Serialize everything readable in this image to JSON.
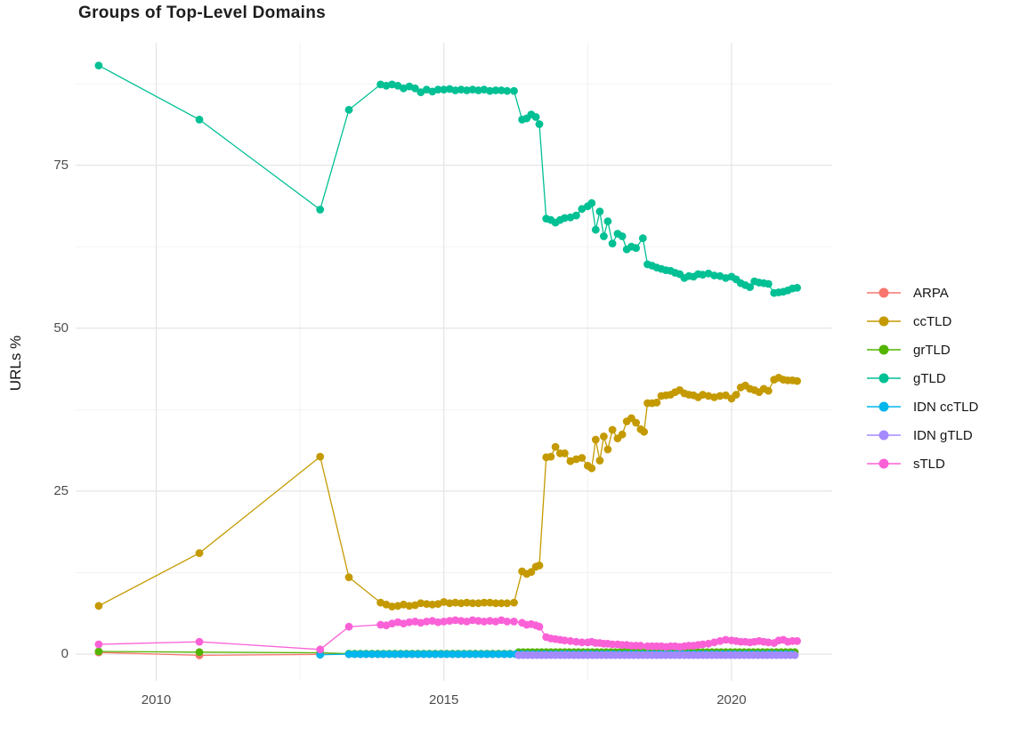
{
  "chart_data": {
    "type": "line",
    "title": "Groups of Top-Level Domains",
    "xlabel": "",
    "ylabel": "URLs %",
    "grid": true,
    "legend_position": "right",
    "xlim": [
      2008.6,
      2021.75
    ],
    "ylim": [
      -4.1,
      93.8
    ],
    "x_ticks": [
      2010,
      2015,
      2020
    ],
    "y_ticks": [
      0,
      25,
      50,
      75
    ],
    "x_minor_gridlines": [
      2012.5,
      2017.5
    ],
    "y_minor_gridlines": [
      12.5,
      37.5,
      62.5,
      87.5
    ],
    "series": [
      {
        "name": "ARPA",
        "color": "#F8766D",
        "points": [
          [
            2009.0,
            0.25
          ],
          [
            2010.75,
            -0.2
          ],
          [
            2012.85,
            -0.05
          ]
        ],
        "flat_segments": [
          {
            "from": 2013.35,
            "to": 2021.14,
            "step": 0.1,
            "value": 0.0
          }
        ]
      },
      {
        "name": "ccTLD",
        "color": "#C49A00",
        "points": [
          [
            2009.0,
            7.4
          ],
          [
            2010.75,
            15.5
          ],
          [
            2012.85,
            30.3
          ],
          [
            2013.35,
            11.8
          ],
          [
            2013.9,
            7.9
          ],
          [
            2014.0,
            7.6
          ],
          [
            2014.1,
            7.3
          ],
          [
            2014.2,
            7.4
          ],
          [
            2014.3,
            7.6
          ],
          [
            2014.4,
            7.4
          ],
          [
            2014.5,
            7.5
          ],
          [
            2014.6,
            7.8
          ],
          [
            2014.7,
            7.7
          ],
          [
            2014.8,
            7.6
          ],
          [
            2014.9,
            7.7
          ],
          [
            2015.0,
            8.0
          ],
          [
            2015.1,
            7.8
          ],
          [
            2015.2,
            7.9
          ],
          [
            2015.3,
            7.8
          ],
          [
            2015.4,
            7.9
          ],
          [
            2015.5,
            7.8
          ],
          [
            2015.6,
            7.8
          ],
          [
            2015.7,
            7.9
          ],
          [
            2015.8,
            7.9
          ],
          [
            2015.9,
            7.8
          ],
          [
            2016.0,
            7.8
          ],
          [
            2016.1,
            7.8
          ],
          [
            2016.22,
            7.9
          ],
          [
            2016.36,
            12.7
          ],
          [
            2016.44,
            12.3
          ],
          [
            2016.52,
            12.6
          ],
          [
            2016.6,
            13.4
          ],
          [
            2016.66,
            13.6
          ],
          [
            2016.78,
            30.2
          ],
          [
            2016.86,
            30.3
          ],
          [
            2016.94,
            31.8
          ],
          [
            2017.02,
            30.8
          ],
          [
            2017.1,
            30.8
          ],
          [
            2017.2,
            29.6
          ],
          [
            2017.3,
            29.9
          ],
          [
            2017.4,
            30.1
          ],
          [
            2017.5,
            28.9
          ],
          [
            2017.57,
            28.5
          ],
          [
            2017.64,
            32.9
          ],
          [
            2017.71,
            29.7
          ],
          [
            2017.78,
            33.4
          ],
          [
            2017.85,
            31.4
          ],
          [
            2017.93,
            34.4
          ],
          [
            2018.02,
            33.1
          ],
          [
            2018.1,
            33.7
          ],
          [
            2018.18,
            35.7
          ],
          [
            2018.26,
            36.2
          ],
          [
            2018.34,
            35.5
          ],
          [
            2018.42,
            34.5
          ],
          [
            2018.48,
            34.1
          ],
          [
            2018.54,
            38.5
          ],
          [
            2018.62,
            38.5
          ],
          [
            2018.7,
            38.6
          ],
          [
            2018.78,
            39.6
          ],
          [
            2018.86,
            39.7
          ],
          [
            2018.94,
            39.8
          ],
          [
            2019.02,
            40.2
          ],
          [
            2019.1,
            40.5
          ],
          [
            2019.18,
            40.0
          ],
          [
            2019.26,
            39.8
          ],
          [
            2019.34,
            39.7
          ],
          [
            2019.42,
            39.4
          ],
          [
            2019.5,
            39.8
          ],
          [
            2019.6,
            39.6
          ],
          [
            2019.7,
            39.4
          ],
          [
            2019.8,
            39.6
          ],
          [
            2019.9,
            39.7
          ],
          [
            2020.0,
            39.2
          ],
          [
            2020.08,
            39.8
          ],
          [
            2020.16,
            40.9
          ],
          [
            2020.24,
            41.2
          ],
          [
            2020.32,
            40.7
          ],
          [
            2020.4,
            40.5
          ],
          [
            2020.48,
            40.2
          ],
          [
            2020.56,
            40.7
          ],
          [
            2020.64,
            40.4
          ],
          [
            2020.74,
            42.1
          ],
          [
            2020.82,
            42.4
          ],
          [
            2020.9,
            42.1
          ],
          [
            2020.98,
            42.0
          ],
          [
            2021.06,
            42.0
          ],
          [
            2021.14,
            41.9
          ]
        ]
      },
      {
        "name": "grTLD",
        "color": "#53B400",
        "points": [
          [
            2009.0,
            0.4
          ],
          [
            2010.75,
            0.3
          ],
          [
            2012.85,
            0.2
          ]
        ],
        "flat_segments": [
          {
            "from": 2013.35,
            "to": 2016.22,
            "step": 0.1,
            "value": 0.06
          },
          {
            "from": 2016.3,
            "to": 2021.14,
            "step": 0.08,
            "value": 0.3
          }
        ]
      },
      {
        "name": "gTLD",
        "color": "#00C094",
        "points": [
          [
            2009.0,
            90.3
          ],
          [
            2010.75,
            82.0
          ],
          [
            2012.85,
            68.2
          ],
          [
            2013.35,
            83.5
          ],
          [
            2013.9,
            87.4
          ],
          [
            2014.0,
            87.2
          ],
          [
            2014.1,
            87.4
          ],
          [
            2014.2,
            87.2
          ],
          [
            2014.3,
            86.8
          ],
          [
            2014.4,
            87.1
          ],
          [
            2014.5,
            86.8
          ],
          [
            2014.6,
            86.2
          ],
          [
            2014.7,
            86.6
          ],
          [
            2014.8,
            86.3
          ],
          [
            2014.9,
            86.6
          ],
          [
            2015.0,
            86.6
          ],
          [
            2015.1,
            86.7
          ],
          [
            2015.2,
            86.5
          ],
          [
            2015.3,
            86.6
          ],
          [
            2015.4,
            86.5
          ],
          [
            2015.5,
            86.6
          ],
          [
            2015.6,
            86.5
          ],
          [
            2015.7,
            86.6
          ],
          [
            2015.8,
            86.4
          ],
          [
            2015.9,
            86.5
          ],
          [
            2016.0,
            86.5
          ],
          [
            2016.1,
            86.4
          ],
          [
            2016.22,
            86.4
          ],
          [
            2016.36,
            82.0
          ],
          [
            2016.44,
            82.2
          ],
          [
            2016.52,
            82.8
          ],
          [
            2016.6,
            82.4
          ],
          [
            2016.66,
            81.3
          ],
          [
            2016.78,
            66.8
          ],
          [
            2016.86,
            66.6
          ],
          [
            2016.94,
            66.2
          ],
          [
            2017.02,
            66.6
          ],
          [
            2017.1,
            66.9
          ],
          [
            2017.2,
            67.0
          ],
          [
            2017.3,
            67.3
          ],
          [
            2017.4,
            68.3
          ],
          [
            2017.5,
            68.7
          ],
          [
            2017.57,
            69.2
          ],
          [
            2017.64,
            65.1
          ],
          [
            2017.71,
            67.9
          ],
          [
            2017.78,
            64.1
          ],
          [
            2017.85,
            66.4
          ],
          [
            2017.93,
            63.0
          ],
          [
            2018.02,
            64.5
          ],
          [
            2018.1,
            64.1
          ],
          [
            2018.18,
            62.1
          ],
          [
            2018.26,
            62.5
          ],
          [
            2018.34,
            62.3
          ],
          [
            2018.46,
            63.8
          ],
          [
            2018.54,
            59.8
          ],
          [
            2018.62,
            59.6
          ],
          [
            2018.7,
            59.3
          ],
          [
            2018.78,
            59.1
          ],
          [
            2018.86,
            58.9
          ],
          [
            2018.94,
            58.8
          ],
          [
            2019.02,
            58.5
          ],
          [
            2019.1,
            58.3
          ],
          [
            2019.18,
            57.7
          ],
          [
            2019.26,
            58.0
          ],
          [
            2019.34,
            57.9
          ],
          [
            2019.42,
            58.3
          ],
          [
            2019.5,
            58.2
          ],
          [
            2019.6,
            58.4
          ],
          [
            2019.7,
            58.1
          ],
          [
            2019.8,
            58.0
          ],
          [
            2019.9,
            57.7
          ],
          [
            2020.0,
            57.9
          ],
          [
            2020.08,
            57.5
          ],
          [
            2020.16,
            56.9
          ],
          [
            2020.24,
            56.6
          ],
          [
            2020.32,
            56.3
          ],
          [
            2020.4,
            57.2
          ],
          [
            2020.48,
            57.0
          ],
          [
            2020.56,
            56.9
          ],
          [
            2020.64,
            56.8
          ],
          [
            2020.74,
            55.4
          ],
          [
            2020.82,
            55.5
          ],
          [
            2020.9,
            55.6
          ],
          [
            2020.98,
            55.8
          ],
          [
            2021.06,
            56.1
          ],
          [
            2021.14,
            56.2
          ]
        ]
      },
      {
        "name": "IDN ccTLD",
        "color": "#00B6EB",
        "points": [
          [
            2012.85,
            -0.1
          ]
        ],
        "flat_segments": [
          {
            "from": 2013.35,
            "to": 2021.14,
            "step": 0.1,
            "value": 0.0
          }
        ]
      },
      {
        "name": "IDN gTLD",
        "color": "#A58AFF",
        "points": [],
        "flat_segments": [
          {
            "from": 2016.3,
            "to": 2021.14,
            "step": 0.08,
            "value": -0.15
          }
        ]
      },
      {
        "name": "sTLD",
        "color": "#FB61D7",
        "points": [
          [
            2009.0,
            1.5
          ],
          [
            2010.75,
            1.9
          ],
          [
            2012.85,
            0.7
          ],
          [
            2013.35,
            4.2
          ],
          [
            2013.9,
            4.5
          ],
          [
            2014.0,
            4.4
          ],
          [
            2014.1,
            4.7
          ],
          [
            2014.2,
            4.9
          ],
          [
            2014.3,
            4.7
          ],
          [
            2014.4,
            4.9
          ],
          [
            2014.5,
            5.0
          ],
          [
            2014.6,
            4.8
          ],
          [
            2014.7,
            5.0
          ],
          [
            2014.8,
            5.1
          ],
          [
            2014.9,
            4.9
          ],
          [
            2015.0,
            5.0
          ],
          [
            2015.1,
            5.1
          ],
          [
            2015.2,
            5.2
          ],
          [
            2015.3,
            5.1
          ],
          [
            2015.4,
            5.0
          ],
          [
            2015.5,
            5.2
          ],
          [
            2015.6,
            5.1
          ],
          [
            2015.7,
            5.0
          ],
          [
            2015.8,
            5.1
          ],
          [
            2015.9,
            5.0
          ],
          [
            2016.0,
            5.2
          ],
          [
            2016.1,
            5.0
          ],
          [
            2016.22,
            5.0
          ],
          [
            2016.36,
            4.8
          ],
          [
            2016.44,
            4.5
          ],
          [
            2016.52,
            4.6
          ],
          [
            2016.6,
            4.4
          ],
          [
            2016.66,
            4.2
          ],
          [
            2016.78,
            2.6
          ],
          [
            2016.86,
            2.4
          ],
          [
            2016.94,
            2.3
          ],
          [
            2017.02,
            2.2
          ],
          [
            2017.1,
            2.1
          ],
          [
            2017.2,
            2.0
          ],
          [
            2017.3,
            1.9
          ],
          [
            2017.4,
            1.8
          ],
          [
            2017.5,
            1.8
          ],
          [
            2017.57,
            1.9
          ],
          [
            2017.64,
            1.7
          ],
          [
            2017.71,
            1.7
          ],
          [
            2017.78,
            1.6
          ],
          [
            2017.85,
            1.6
          ],
          [
            2017.93,
            1.5
          ],
          [
            2018.02,
            1.5
          ],
          [
            2018.1,
            1.4
          ],
          [
            2018.18,
            1.4
          ],
          [
            2018.26,
            1.3
          ],
          [
            2018.34,
            1.3
          ],
          [
            2018.42,
            1.3
          ],
          [
            2018.54,
            1.2
          ],
          [
            2018.62,
            1.2
          ],
          [
            2018.7,
            1.2
          ],
          [
            2018.78,
            1.2
          ],
          [
            2018.86,
            1.1
          ],
          [
            2018.94,
            1.2
          ],
          [
            2019.02,
            1.2
          ],
          [
            2019.1,
            1.1
          ],
          [
            2019.18,
            1.2
          ],
          [
            2019.26,
            1.3
          ],
          [
            2019.34,
            1.3
          ],
          [
            2019.42,
            1.4
          ],
          [
            2019.5,
            1.5
          ],
          [
            2019.6,
            1.6
          ],
          [
            2019.7,
            1.8
          ],
          [
            2019.8,
            2.0
          ],
          [
            2019.9,
            2.2
          ],
          [
            2020.0,
            2.1
          ],
          [
            2020.08,
            2.0
          ],
          [
            2020.16,
            1.9
          ],
          [
            2020.24,
            1.9
          ],
          [
            2020.32,
            1.8
          ],
          [
            2020.4,
            1.9
          ],
          [
            2020.48,
            2.0
          ],
          [
            2020.56,
            1.9
          ],
          [
            2020.64,
            1.8
          ],
          [
            2020.74,
            1.7
          ],
          [
            2020.82,
            2.1
          ],
          [
            2020.9,
            2.2
          ],
          [
            2020.98,
            1.9
          ],
          [
            2021.06,
            2.0
          ],
          [
            2021.14,
            2.0
          ]
        ]
      }
    ]
  },
  "style": {
    "major_grid_color": "#e4e4e4",
    "minor_grid_color": "#f1f1f1",
    "tick_label_color": "#4d4d4d"
  }
}
